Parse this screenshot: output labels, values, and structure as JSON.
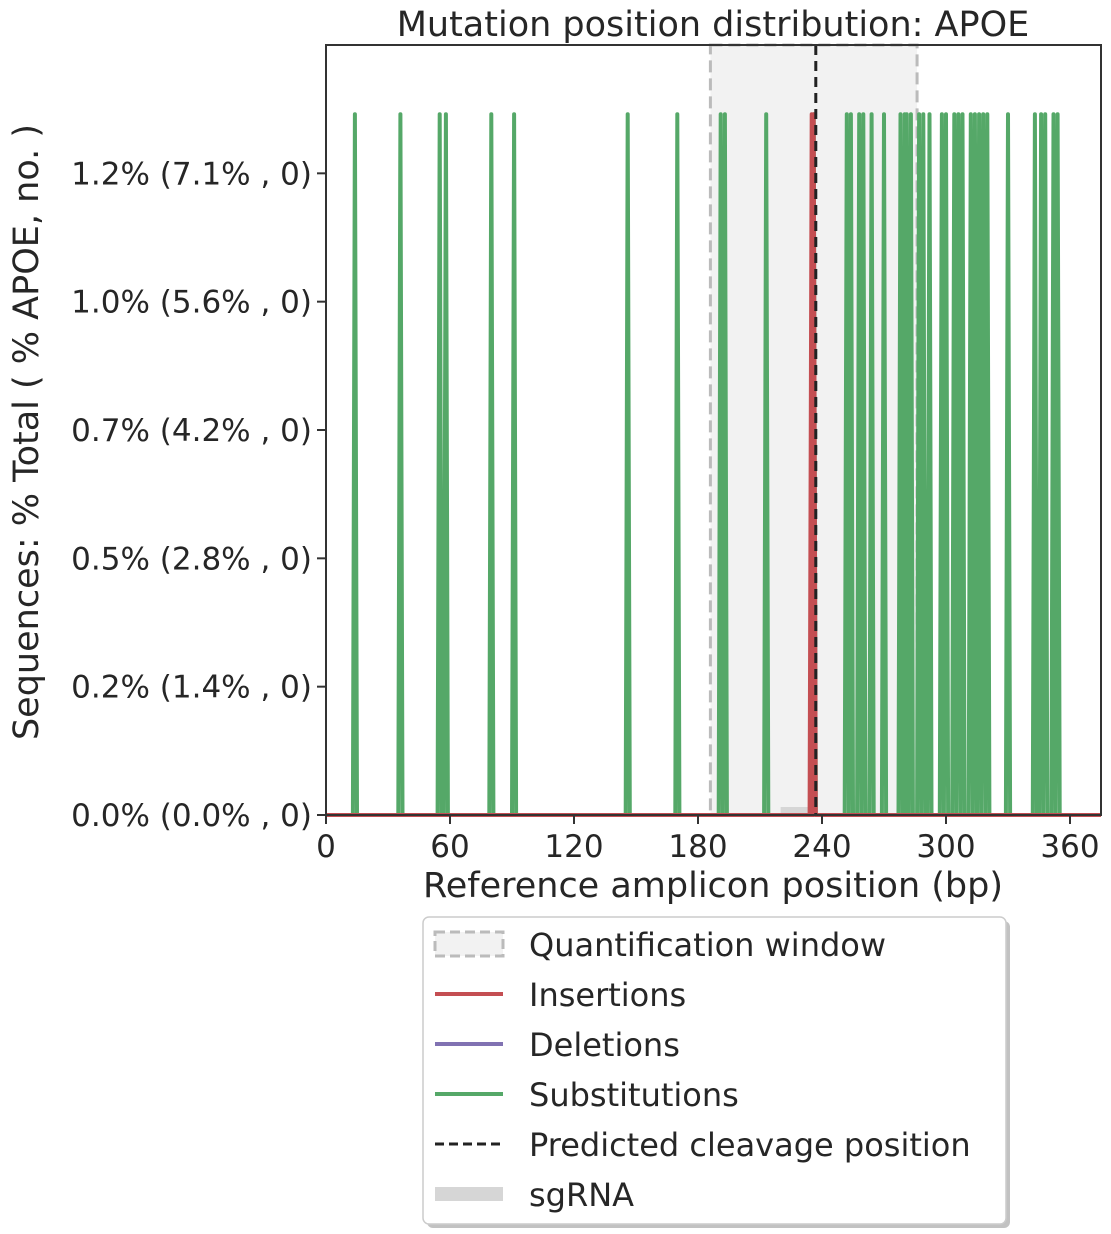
{
  "chart_data": {
    "type": "line",
    "title": "Mutation position distribution: APOE",
    "xlabel": "Reference amplicon position (bp)",
    "ylabel": "Sequences: % Total ( % APOE, no. )",
    "xlim": [
      0,
      375
    ],
    "ylim": [
      0,
      1.5
    ],
    "x_ticks": [
      0,
      60,
      120,
      180,
      240,
      300,
      360
    ],
    "y_ticks": [
      {
        "value": 0.0,
        "label": "0.0% (0.0% , 0)"
      },
      {
        "value": 0.25,
        "label": "0.2% (1.4% , 0)"
      },
      {
        "value": 0.5,
        "label": "0.5% (2.8% , 0)"
      },
      {
        "value": 0.75,
        "label": "0.7% (4.2% , 0)"
      },
      {
        "value": 1.0,
        "label": "1.0% (5.6% , 0)"
      },
      {
        "value": 1.25,
        "label": "1.2% (7.1% , 0)"
      }
    ],
    "spike_height": 1.365,
    "quantification_window": [
      186,
      286
    ],
    "sgrna": [
      220,
      237
    ],
    "predicted_cleavage": 237,
    "series": [
      {
        "name": "Insertions",
        "color": "#c44e52",
        "positions": [
          235,
          236
        ]
      },
      {
        "name": "Deletions",
        "color": "#8172b2",
        "positions": []
      },
      {
        "name": "Substitutions",
        "color": "#55a868",
        "positions": [
          14,
          36,
          55,
          58,
          80,
          91,
          146,
          170,
          191,
          193,
          213,
          236,
          252,
          254,
          258,
          260,
          264,
          270,
          278,
          280,
          281,
          283,
          287,
          289,
          292,
          298,
          300,
          304,
          306,
          308,
          312,
          314,
          316,
          318,
          320,
          330,
          343,
          346,
          348,
          352,
          354
        ]
      }
    ],
    "legend": {
      "placement": "below",
      "entries": [
        {
          "label": "Quantification window",
          "kind": "patch"
        },
        {
          "label": "Insertions",
          "kind": "line",
          "color": "#c44e52"
        },
        {
          "label": "Deletions",
          "kind": "line",
          "color": "#8172b2"
        },
        {
          "label": "Substitutions",
          "kind": "line",
          "color": "#55a868"
        },
        {
          "label": "Predicted cleavage position",
          "kind": "dashed"
        },
        {
          "label": "sgRNA",
          "kind": "band"
        }
      ]
    }
  }
}
